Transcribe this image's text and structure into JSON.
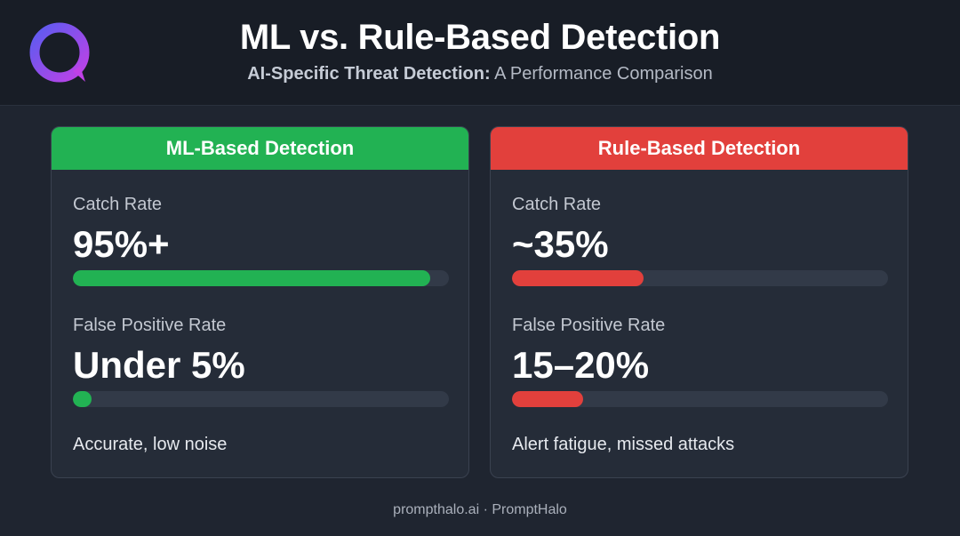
{
  "header": {
    "title": "ML vs. Rule-Based Detection",
    "subtitle_strong": "AI-Specific Threat Detection:",
    "subtitle_rest": " A Performance Comparison",
    "logo_icon": "ring-logo-icon",
    "logo_colors": [
      "#5b5cf0",
      "#c041e6"
    ]
  },
  "cards": {
    "ml": {
      "header": "ML-Based Detection",
      "accent": "#22b253",
      "catch_label": "Catch Rate",
      "catch_value": "95%+",
      "catch_fill": 0.95,
      "fp_label": "False Positive Rate",
      "fp_value": "Under 5%",
      "fp_fill": 0.05,
      "summary": "Accurate, low noise"
    },
    "rule": {
      "header": "Rule-Based Detection",
      "accent": "#e2403c",
      "catch_label": "Catch Rate",
      "catch_value": "~35%",
      "catch_fill": 0.35,
      "fp_label": "False Positive Rate",
      "fp_value": "15–20%",
      "fp_fill": 0.19,
      "summary": "Alert fatigue, missed attacks"
    }
  },
  "footer": {
    "text": "prompthalo.ai · PromptHalo"
  }
}
